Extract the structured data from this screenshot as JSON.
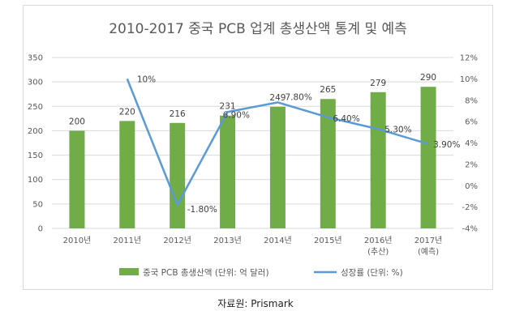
{
  "chart_data": {
    "type": "bar+line",
    "title": "2010-2017 중국 PCB 업계 총생산액 통계 및 예측",
    "categories": [
      [
        "2010년"
      ],
      [
        "2011년"
      ],
      [
        "2012년"
      ],
      [
        "2013년"
      ],
      [
        "2014년"
      ],
      [
        "2015년"
      ],
      [
        "2016년",
        "(추산)"
      ],
      [
        "2017년",
        "(예측)"
      ]
    ],
    "series": [
      {
        "name": "중국 PCB 총생산액 (단위: 억 달러)",
        "type": "bar",
        "axis": "left",
        "color": "#70ad47",
        "values": [
          200,
          220,
          216,
          231,
          249,
          265,
          279,
          290
        ],
        "labels": [
          "200",
          "220",
          "216",
          "231",
          "249",
          "265",
          "279",
          "290"
        ]
      },
      {
        "name": "성장률 (단위: %)",
        "type": "line",
        "axis": "right",
        "color": "#5b9bd5",
        "values": [
          null,
          10,
          -1.8,
          6.9,
          7.8,
          6.4,
          5.3,
          3.9
        ],
        "labels": [
          null,
          "10%",
          "-1.80%",
          "6.90%",
          "7.80%",
          "6.40%",
          "5.30%",
          "3.90%"
        ]
      }
    ],
    "y_left": {
      "min": 0,
      "max": 350,
      "step": 50,
      "ticks": [
        "0",
        "50",
        "100",
        "150",
        "200",
        "250",
        "300",
        "350"
      ]
    },
    "y_right": {
      "min": -4,
      "max": 12,
      "step": 2,
      "ticks": [
        "-4%",
        "-2%",
        "0%",
        "2%",
        "4%",
        "6%",
        "8%",
        "10%",
        "12%"
      ]
    },
    "grid": true,
    "legend_position": "bottom"
  },
  "source": "자료원: Prismark"
}
